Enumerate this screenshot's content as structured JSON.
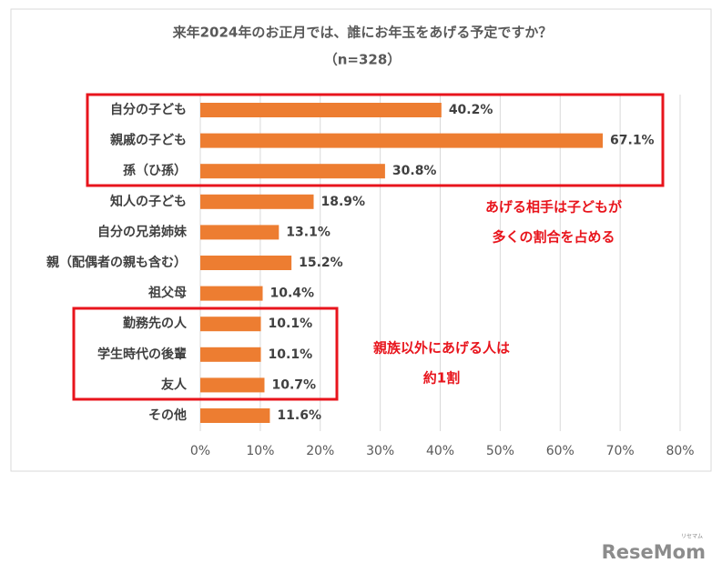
{
  "chart_data": {
    "type": "barh",
    "title": "来年2024年のお正月では、誰にお年玉をあげる予定ですか？",
    "subtitle": "（n=328）",
    "categories": [
      "自分の子ども",
      "親戚の子ども",
      "孫（ひ孫）",
      "知人の子ども",
      "自分の兄弟姉妹",
      "親（配偶者の親も含む）",
      "祖父母",
      "勤務先の人",
      "学生時代の後輩",
      "友人",
      "その他"
    ],
    "values": [
      40.2,
      67.1,
      30.8,
      18.9,
      13.1,
      15.2,
      10.4,
      10.1,
      10.1,
      10.7,
      11.6
    ],
    "value_labels": [
      "40.2%",
      "67.1%",
      "30.8%",
      "18.9%",
      "13.1%",
      "15.2%",
      "10.4%",
      "10.1%",
      "10.1%",
      "10.7%",
      "11.6%"
    ],
    "color": "#ed7d31",
    "xlim": [
      0,
      80
    ],
    "xticks": [
      {
        "value": 0,
        "label": "0%"
      },
      {
        "value": 10,
        "label": "10%"
      },
      {
        "value": 20,
        "label": "20%"
      },
      {
        "value": 30,
        "label": "30%"
      },
      {
        "value": 40,
        "label": "40%"
      },
      {
        "value": 50,
        "label": "50%"
      },
      {
        "value": 60,
        "label": "60%"
      },
      {
        "value": 70,
        "label": "70%"
      },
      {
        "value": 80,
        "label": "80%"
      }
    ],
    "grid": true,
    "annotations": [
      {
        "lines": [
          "あげる相手は子どもが",
          "多くの割合を占める"
        ],
        "color": "#e8141c"
      },
      {
        "lines": [
          "親族以外にあげる人は",
          "約1割"
        ],
        "color": "#e8141c"
      }
    ]
  },
  "logo": {
    "sub": "リセマム",
    "name": "ReseMom"
  }
}
